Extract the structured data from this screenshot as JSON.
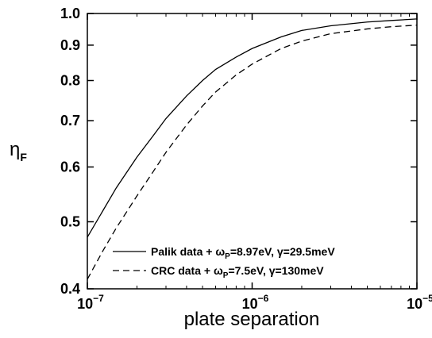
{
  "chart_data": {
    "type": "line",
    "xlabel": "plate separation",
    "ylabel": "η",
    "ylabel_subscript": "F",
    "x_scale": "log",
    "y_scale": "log",
    "xlim": [
      1e-07,
      1e-05
    ],
    "ylim": [
      0.4,
      1.0
    ],
    "x_ticks": [
      {
        "value": 1e-07,
        "base": "10",
        "exp": "−7"
      },
      {
        "value": 1e-06,
        "base": "10",
        "exp": "−6"
      },
      {
        "value": 1e-05,
        "base": "10",
        "exp": "−5"
      }
    ],
    "y_ticks": [
      {
        "value": 0.4,
        "label": "0.4"
      },
      {
        "value": 0.5,
        "label": "0.5"
      },
      {
        "value": 0.6,
        "label": "0.6"
      },
      {
        "value": 0.7,
        "label": "0.7"
      },
      {
        "value": 0.8,
        "label": "0.8"
      },
      {
        "value": 0.9,
        "label": "0.9"
      },
      {
        "value": 1.0,
        "label": "1.0"
      }
    ],
    "grid": false,
    "legend_position": "bottom-right",
    "series": [
      {
        "name": "Palik data + ωP=8.97eV, γ=29.5meV",
        "legend_parts": [
          {
            "t": "Palik data + ω"
          },
          {
            "t": "P",
            "sub": true
          },
          {
            "t": "=8.97eV, γ=29.5meV"
          }
        ],
        "style": "solid",
        "color": "#000000",
        "x": [
          1e-07,
          1.25e-07,
          1.5e-07,
          2e-07,
          2.5e-07,
          3e-07,
          4e-07,
          5e-07,
          6e-07,
          8e-07,
          1e-06,
          1.5e-06,
          2e-06,
          3e-06,
          5e-06,
          7e-06,
          1e-05
        ],
        "y": [
          0.475,
          0.52,
          0.56,
          0.62,
          0.665,
          0.705,
          0.76,
          0.8,
          0.83,
          0.865,
          0.89,
          0.925,
          0.945,
          0.96,
          0.972,
          0.977,
          0.982
        ]
      },
      {
        "name": "CRC data + ωP=7.5eV, γ=130meV",
        "legend_parts": [
          {
            "t": "CRC data + ω"
          },
          {
            "t": "P",
            "sub": true
          },
          {
            "t": "=7.5eV, γ=130meV"
          }
        ],
        "style": "dashed",
        "color": "#000000",
        "x": [
          1e-07,
          1.25e-07,
          1.5e-07,
          2e-07,
          2.5e-07,
          3e-07,
          4e-07,
          5e-07,
          6e-07,
          8e-07,
          1e-06,
          1.5e-06,
          2e-06,
          3e-06,
          5e-06,
          7e-06,
          1e-05
        ],
        "y": [
          0.413,
          0.455,
          0.49,
          0.545,
          0.59,
          0.63,
          0.69,
          0.735,
          0.77,
          0.815,
          0.845,
          0.89,
          0.912,
          0.935,
          0.95,
          0.957,
          0.962
        ]
      }
    ]
  }
}
